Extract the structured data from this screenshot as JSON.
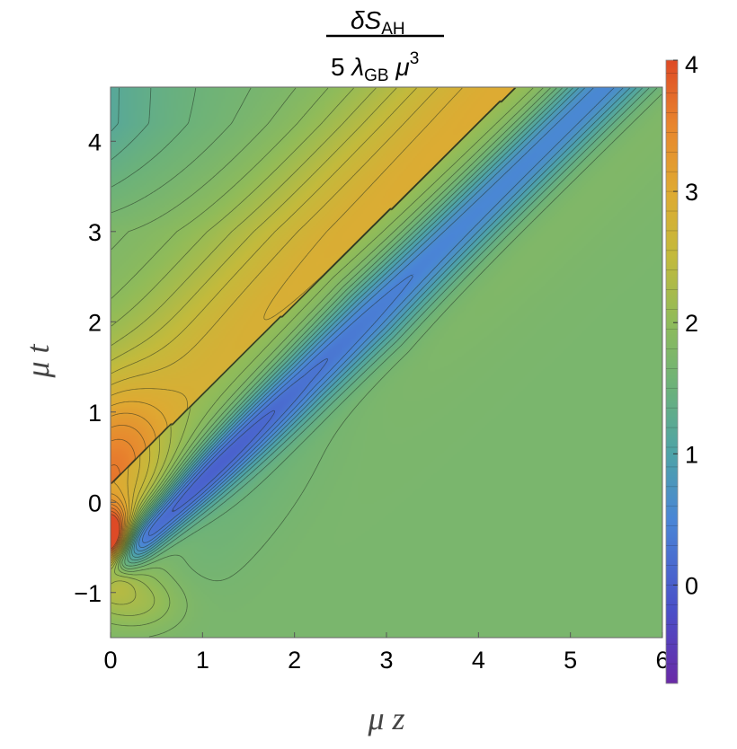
{
  "chart_data": {
    "type": "heatmap",
    "subtype": "contour",
    "title": {
      "numerator": {
        "symbol": "δS",
        "subscript": "AH"
      },
      "denominator": {
        "coefficient": "5",
        "lambda": "λ",
        "lambda_subscript": "GB",
        "mu": "μ",
        "power": "3"
      }
    },
    "xlabel": "μ z",
    "ylabel": "μ t",
    "xlim": [
      0,
      6
    ],
    "ylim": [
      -1.5,
      4.6
    ],
    "xticks": [
      "0",
      "1",
      "2",
      "3",
      "4",
      "5",
      "6"
    ],
    "yticks": [
      "−1",
      "0",
      "1",
      "2",
      "3",
      "4"
    ],
    "ytick_values": [
      -1,
      0,
      1,
      2,
      3,
      4
    ],
    "colorbar": {
      "range": [
        -0.75,
        4
      ],
      "ticks": [
        "0",
        "1",
        "2",
        "3",
        "4"
      ],
      "tick_values": [
        0,
        1,
        2,
        3,
        4
      ],
      "colors": [
        "#6a2aa6",
        "#4a4fc8",
        "#4a86d6",
        "#4ea3a8",
        "#6cb27a",
        "#8fbb5a",
        "#c3ba3c",
        "#dfaa32",
        "#e8862e",
        "#de4a26"
      ],
      "stops": [
        -0.75,
        -0.2,
        0.5,
        1.0,
        1.5,
        2.0,
        2.5,
        3.0,
        3.5,
        4.0
      ]
    },
    "features": [
      {
        "name": "minimum trough",
        "x_range": [
          0.2,
          6.0
        ],
        "t_along": "t ≈ 1.0·z − 0.75",
        "value_min": -0.75
      },
      {
        "name": "maximum peak",
        "x": 0.05,
        "t": -0.45,
        "value": 4.0
      },
      {
        "name": "upper ridge",
        "t_along": "t ≈ z + 0.2",
        "value": 3.2
      },
      {
        "name": "far-field plateau",
        "value": 1.7
      }
    ],
    "grid": false,
    "legend": "colorbar-right"
  }
}
